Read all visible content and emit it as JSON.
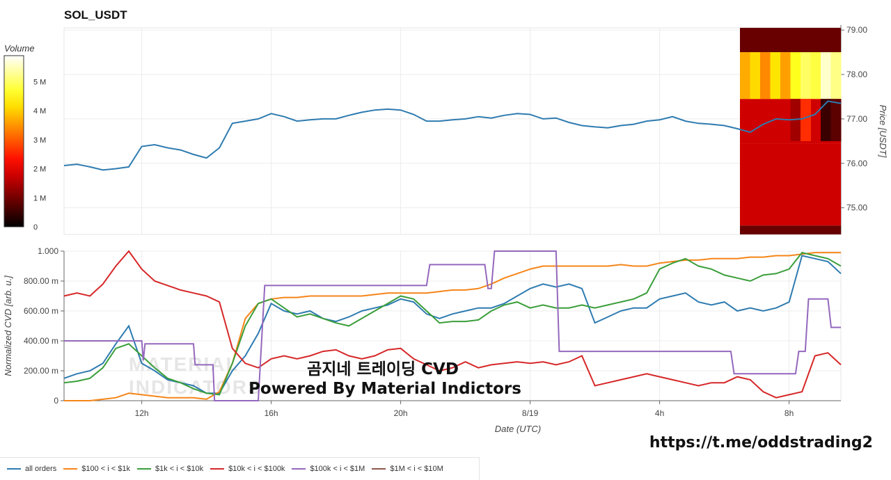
{
  "chart_data": [
    {
      "type": "line",
      "title": "SOL_USDT",
      "ylabel": "Price [USDT]",
      "yticks": [
        "75.00",
        "76.00",
        "77.00",
        "78.00",
        "79.00"
      ],
      "ylim": [
        74.4,
        79.05
      ],
      "xlim_hours": [
        9.6,
        33.6
      ],
      "xticks": [
        {
          "label": "12h",
          "hour": 12
        },
        {
          "label": "16h",
          "hour": 16
        },
        {
          "label": "20h",
          "hour": 20
        },
        {
          "label": "8/19",
          "hour": 24
        },
        {
          "label": "4h",
          "hour": 28
        },
        {
          "label": "8h",
          "hour": 32
        }
      ],
      "x_hours": [
        9.6,
        10.0,
        10.4,
        10.8,
        11.2,
        11.6,
        12.0,
        12.4,
        12.8,
        13.2,
        13.6,
        14.0,
        14.4,
        14.8,
        15.2,
        15.6,
        16.0,
        16.4,
        16.8,
        17.2,
        17.6,
        18.0,
        18.4,
        18.8,
        19.2,
        19.6,
        20.0,
        20.4,
        20.8,
        21.2,
        21.6,
        22.0,
        22.4,
        22.8,
        23.2,
        23.6,
        24.0,
        24.4,
        24.8,
        25.2,
        25.6,
        26.0,
        26.4,
        26.8,
        27.2,
        27.6,
        28.0,
        28.4,
        28.8,
        29.2,
        29.6,
        30.0,
        30.4,
        30.8,
        31.2,
        31.6,
        32.0,
        32.4,
        32.8,
        33.2,
        33.6
      ],
      "series": [
        {
          "name": "",
          "color": "#2e7bb0",
          "values": [
            75.95,
            75.98,
            75.92,
            75.85,
            75.88,
            75.92,
            76.38,
            76.42,
            76.35,
            76.3,
            76.2,
            76.12,
            76.35,
            76.9,
            76.95,
            77.0,
            77.12,
            77.05,
            76.95,
            76.98,
            77.0,
            77.0,
            77.08,
            77.15,
            77.2,
            77.22,
            77.2,
            77.1,
            76.95,
            76.95,
            76.98,
            77.0,
            77.05,
            77.02,
            77.08,
            77.12,
            77.1,
            77.0,
            77.02,
            76.92,
            76.85,
            76.82,
            76.8,
            76.85,
            76.88,
            76.95,
            76.98,
            77.05,
            76.95,
            76.9,
            76.88,
            76.85,
            76.78,
            76.7,
            76.88,
            77.0,
            76.98,
            77.0,
            77.1,
            77.4,
            77.35
          ]
        }
      ],
      "colorbar": {
        "title": "Volume",
        "ticks": [
          "0",
          "1 M",
          "2 M",
          "3 M",
          "4 M",
          "5 M"
        ],
        "range": [
          0,
          5.9
        ]
      },
      "heatmap": {
        "price_min": 74.4,
        "price_max": 79.05,
        "bands": [
          {
            "p0": 78.5,
            "p1": 79.05,
            "v": 0.9
          },
          {
            "p0": 77.45,
            "p1": 78.5,
            "v": 4.4
          },
          {
            "p0": 76.45,
            "p1": 77.45,
            "v": 1.8
          },
          {
            "p0": 74.6,
            "p1": 76.45,
            "v": 1.8
          },
          {
            "p0": 74.4,
            "p1": 74.6,
            "v": 0.9
          }
        ]
      }
    },
    {
      "type": "line",
      "xlabel": "Date (UTC)",
      "ylabel": "Normalized CVD [arb. u.]",
      "yticks": [
        "0",
        "200.00 m",
        "400.00 m",
        "600.00 m",
        "800.00 m",
        "1.000"
      ],
      "ylim": [
        0,
        1.0
      ],
      "xlim_hours": [
        9.6,
        33.6
      ],
      "x_hours": [
        9.6,
        10.0,
        10.4,
        10.8,
        11.2,
        11.6,
        12.0,
        12.4,
        12.8,
        13.2,
        13.6,
        14.0,
        14.4,
        14.8,
        15.2,
        15.6,
        16.0,
        16.4,
        16.8,
        17.2,
        17.6,
        18.0,
        18.4,
        18.8,
        19.2,
        19.6,
        20.0,
        20.4,
        20.8,
        21.2,
        21.6,
        22.0,
        22.4,
        22.8,
        23.2,
        23.6,
        24.0,
        24.4,
        24.8,
        25.2,
        25.6,
        26.0,
        26.4,
        26.8,
        27.2,
        27.6,
        28.0,
        28.4,
        28.8,
        29.2,
        29.6,
        30.0,
        30.4,
        30.8,
        31.2,
        31.6,
        32.0,
        32.4,
        32.8,
        33.2,
        33.6
      ],
      "series": [
        {
          "name": "all orders",
          "color": "#2e7bb0",
          "values": [
            0.15,
            0.18,
            0.2,
            0.25,
            0.38,
            0.5,
            0.25,
            0.2,
            0.14,
            0.12,
            0.1,
            0.05,
            0.05,
            0.2,
            0.3,
            0.45,
            0.65,
            0.6,
            0.58,
            0.6,
            0.55,
            0.53,
            0.56,
            0.6,
            0.62,
            0.64,
            0.68,
            0.66,
            0.58,
            0.55,
            0.58,
            0.6,
            0.62,
            0.62,
            0.65,
            0.7,
            0.75,
            0.78,
            0.76,
            0.78,
            0.75,
            0.52,
            0.56,
            0.6,
            0.62,
            0.62,
            0.68,
            0.7,
            0.72,
            0.66,
            0.64,
            0.66,
            0.6,
            0.62,
            0.6,
            0.62,
            0.66,
            0.97,
            0.95,
            0.93,
            0.85
          ]
        },
        {
          "name": "$100 < i < $1k",
          "color": "#f58518",
          "values": [
            0.0,
            0.0,
            0.0,
            0.01,
            0.02,
            0.05,
            0.04,
            0.03,
            0.02,
            0.02,
            0.02,
            0.01,
            0.06,
            0.25,
            0.55,
            0.65,
            0.68,
            0.69,
            0.69,
            0.7,
            0.7,
            0.7,
            0.7,
            0.7,
            0.71,
            0.72,
            0.72,
            0.72,
            0.72,
            0.73,
            0.74,
            0.74,
            0.75,
            0.78,
            0.82,
            0.85,
            0.88,
            0.9,
            0.9,
            0.9,
            0.9,
            0.9,
            0.9,
            0.91,
            0.9,
            0.9,
            0.92,
            0.93,
            0.94,
            0.94,
            0.95,
            0.95,
            0.95,
            0.96,
            0.96,
            0.97,
            0.97,
            0.98,
            0.99,
            0.99,
            0.99
          ]
        },
        {
          "name": "$1k < i < $10k",
          "color": "#3a9e3a",
          "values": [
            0.12,
            0.13,
            0.15,
            0.22,
            0.35,
            0.38,
            0.3,
            0.22,
            0.15,
            0.12,
            0.08,
            0.05,
            0.04,
            0.25,
            0.5,
            0.65,
            0.68,
            0.62,
            0.56,
            0.58,
            0.55,
            0.52,
            0.5,
            0.55,
            0.6,
            0.65,
            0.7,
            0.68,
            0.6,
            0.52,
            0.53,
            0.53,
            0.54,
            0.6,
            0.64,
            0.66,
            0.62,
            0.64,
            0.62,
            0.62,
            0.64,
            0.62,
            0.64,
            0.66,
            0.68,
            0.72,
            0.88,
            0.92,
            0.95,
            0.9,
            0.88,
            0.84,
            0.82,
            0.8,
            0.84,
            0.85,
            0.88,
            0.99,
            0.97,
            0.95,
            0.9
          ]
        },
        {
          "name": "$10k < i < $100k",
          "color": "#d62728",
          "values": [
            0.7,
            0.72,
            0.7,
            0.78,
            0.9,
            1.0,
            0.88,
            0.8,
            0.77,
            0.74,
            0.72,
            0.7,
            0.66,
            0.35,
            0.25,
            0.22,
            0.28,
            0.3,
            0.28,
            0.3,
            0.33,
            0.34,
            0.3,
            0.28,
            0.3,
            0.34,
            0.35,
            0.28,
            0.24,
            0.2,
            0.22,
            0.26,
            0.22,
            0.24,
            0.25,
            0.26,
            0.25,
            0.26,
            0.24,
            0.26,
            0.3,
            0.1,
            0.12,
            0.14,
            0.16,
            0.18,
            0.16,
            0.14,
            0.12,
            0.1,
            0.12,
            0.12,
            0.16,
            0.14,
            0.06,
            0.02,
            0.04,
            0.06,
            0.3,
            0.32,
            0.24
          ]
        },
        {
          "name": "$100k < i < $1M",
          "color": "#9467bd",
          "steps": [
            [
              9.6,
              0.4
            ],
            [
              12.0,
              0.4
            ],
            [
              12.05,
              0.27
            ],
            [
              12.1,
              0.38
            ],
            [
              13.6,
              0.38
            ],
            [
              13.65,
              0.24
            ],
            [
              14.2,
              0.24
            ],
            [
              14.25,
              0.0
            ],
            [
              15.6,
              0.0
            ],
            [
              15.8,
              0.77
            ],
            [
              20.8,
              0.77
            ],
            [
              20.9,
              0.91
            ],
            [
              22.6,
              0.91
            ],
            [
              22.7,
              0.75
            ],
            [
              22.8,
              0.75
            ],
            [
              22.9,
              1.0
            ],
            [
              24.8,
              1.0
            ],
            [
              24.9,
              0.33
            ],
            [
              30.2,
              0.33
            ],
            [
              30.3,
              0.18
            ],
            [
              32.2,
              0.18
            ],
            [
              32.3,
              0.33
            ],
            [
              32.5,
              0.33
            ],
            [
              32.6,
              0.68
            ],
            [
              33.2,
              0.68
            ],
            [
              33.3,
              0.49
            ],
            [
              33.6,
              0.49
            ]
          ]
        },
        {
          "name": "$1M < i < $10M",
          "color": "#8c564b",
          "values": []
        }
      ]
    }
  ],
  "overlay": {
    "line1": "곰지네 트레이딩 CVD",
    "line2": "Powered By Material Indictors"
  },
  "footer": {
    "link": "https://t.me/oddstrading2"
  }
}
